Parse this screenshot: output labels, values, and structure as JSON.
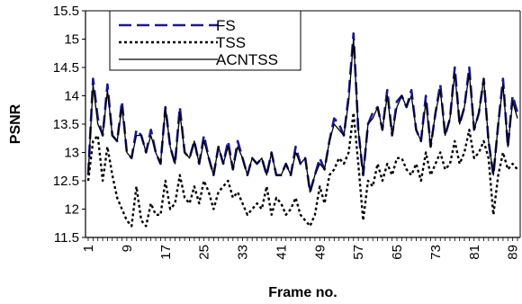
{
  "chart_data": {
    "type": "line",
    "xlabel": "Frame no.",
    "ylabel": "PSNR",
    "ylim": [
      11.5,
      15.5
    ],
    "yticks": [
      11.5,
      12,
      12.5,
      13,
      13.5,
      14,
      14.5,
      15,
      15.5
    ],
    "xlim": [
      1,
      90
    ],
    "xticks": [
      1,
      9,
      17,
      25,
      33,
      41,
      49,
      57,
      65,
      73,
      81,
      89
    ],
    "grid": false,
    "legend_position": "top-left",
    "x": [
      1,
      2,
      3,
      4,
      5,
      6,
      7,
      8,
      9,
      10,
      11,
      12,
      13,
      14,
      15,
      16,
      17,
      18,
      19,
      20,
      21,
      22,
      23,
      24,
      25,
      26,
      27,
      28,
      29,
      30,
      31,
      32,
      33,
      34,
      35,
      36,
      37,
      38,
      39,
      40,
      41,
      42,
      43,
      44,
      45,
      46,
      47,
      48,
      49,
      50,
      51,
      52,
      53,
      54,
      55,
      56,
      57,
      58,
      59,
      60,
      61,
      62,
      63,
      64,
      65,
      66,
      67,
      68,
      69,
      70,
      71,
      72,
      73,
      74,
      75,
      76,
      77,
      78,
      79,
      80,
      81,
      82,
      83,
      84,
      85,
      86,
      87,
      88,
      89,
      90
    ],
    "series": [
      {
        "name": "FS",
        "style": "dashed",
        "color": "#1a1a8c",
        "values": [
          12.6,
          14.3,
          13.6,
          13.3,
          14.2,
          13.3,
          13.2,
          13.9,
          13.0,
          12.9,
          13.4,
          13.3,
          13.0,
          13.4,
          13.0,
          12.8,
          13.8,
          13.1,
          12.8,
          13.8,
          13.0,
          12.9,
          13.2,
          12.8,
          13.3,
          12.9,
          12.6,
          13.1,
          12.8,
          13.2,
          12.7,
          13.2,
          12.9,
          12.6,
          12.9,
          12.8,
          12.9,
          12.6,
          13.0,
          12.6,
          12.6,
          12.8,
          12.6,
          13.1,
          12.8,
          12.9,
          12.3,
          12.6,
          12.9,
          12.7,
          13.2,
          13.6,
          13.5,
          13.3,
          14.0,
          15.1,
          13.4,
          12.6,
          13.5,
          13.7,
          13.8,
          13.4,
          14.1,
          13.3,
          13.9,
          14.0,
          13.8,
          14.1,
          13.4,
          13.2,
          14.0,
          13.1,
          13.7,
          14.2,
          13.3,
          13.6,
          14.5,
          13.5,
          13.8,
          14.5,
          13.4,
          13.7,
          14.3,
          13.2,
          12.6,
          13.5,
          14.3,
          13.1,
          14.0,
          13.7
        ]
      },
      {
        "name": "TSS",
        "style": "dotted",
        "color": "#000000",
        "values": [
          12.5,
          13.2,
          13.3,
          12.5,
          13.1,
          12.6,
          12.2,
          12.0,
          11.8,
          11.7,
          12.4,
          11.8,
          11.7,
          12.1,
          11.9,
          11.9,
          12.5,
          12.0,
          12.1,
          12.6,
          12.2,
          12.1,
          12.4,
          12.1,
          12.5,
          12.3,
          12.0,
          12.3,
          12.4,
          12.5,
          12.2,
          12.3,
          12.1,
          11.9,
          12.0,
          12.1,
          12.0,
          12.4,
          11.9,
          12.2,
          12.1,
          11.9,
          12.0,
          12.2,
          11.9,
          11.8,
          11.7,
          11.9,
          12.4,
          12.1,
          12.6,
          12.7,
          12.9,
          12.8,
          13.0,
          13.7,
          12.8,
          11.8,
          12.5,
          12.4,
          12.8,
          12.5,
          12.8,
          12.6,
          12.9,
          12.9,
          12.7,
          12.6,
          12.8,
          12.5,
          13.0,
          12.6,
          12.8,
          13.0,
          12.7,
          12.8,
          13.2,
          12.8,
          13.0,
          13.4,
          12.9,
          13.0,
          13.2,
          12.9,
          11.9,
          12.6,
          13.0,
          12.7,
          12.8,
          12.7
        ]
      },
      {
        "name": "ACNTSS",
        "style": "solid",
        "color": "#000000",
        "values": [
          12.6,
          14.2,
          13.5,
          13.3,
          14.1,
          13.3,
          13.2,
          13.8,
          13.0,
          12.9,
          13.3,
          13.3,
          13.0,
          13.3,
          13.0,
          12.8,
          13.8,
          13.1,
          12.8,
          13.7,
          13.0,
          12.9,
          13.2,
          12.8,
          13.2,
          12.9,
          12.6,
          13.1,
          12.8,
          13.1,
          12.7,
          13.1,
          12.9,
          12.6,
          12.9,
          12.8,
          12.9,
          12.6,
          13.0,
          12.6,
          12.6,
          12.8,
          12.6,
          13.0,
          12.8,
          12.9,
          12.3,
          12.6,
          12.8,
          12.7,
          13.2,
          13.5,
          13.4,
          13.3,
          13.9,
          15.0,
          13.4,
          12.6,
          13.5,
          13.6,
          13.8,
          13.4,
          14.0,
          13.3,
          13.8,
          14.0,
          13.8,
          14.0,
          13.4,
          13.2,
          13.9,
          13.1,
          13.7,
          14.1,
          13.3,
          13.6,
          14.4,
          13.5,
          13.8,
          14.4,
          13.4,
          13.7,
          14.3,
          13.2,
          12.6,
          13.5,
          14.2,
          13.1,
          13.9,
          13.6
        ]
      }
    ]
  }
}
